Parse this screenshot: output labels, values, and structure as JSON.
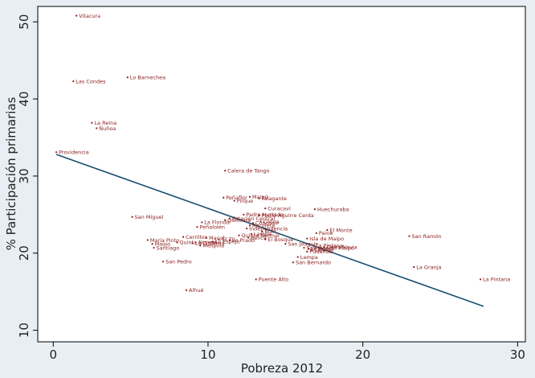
{
  "chart_data": {
    "type": "scatter",
    "xlabel": "Pobreza 2012",
    "ylabel": "% Participación primarias",
    "xlim": [
      -1,
      30.5
    ],
    "ylim": [
      8.5,
      52
    ],
    "xticks": [
      0,
      10,
      20,
      30
    ],
    "yticks": [
      10,
      20,
      30,
      40,
      50
    ],
    "grid": false,
    "legend": "none",
    "point_color": "#8b1a1a",
    "line_color": "#1a4f72",
    "fit_line": {
      "x": [
        0.2,
        27.8
      ],
      "y": [
        32.8,
        13.1
      ]
    },
    "points": [
      {
        "name": "Vitacura",
        "x": 1.5,
        "y": 50.8
      },
      {
        "name": "Las Condes",
        "x": 1.3,
        "y": 42.3
      },
      {
        "name": "Lo Barnechea",
        "x": 4.8,
        "y": 42.8
      },
      {
        "name": "La Reina",
        "x": 2.5,
        "y": 36.9
      },
      {
        "name": "Ñuñoa",
        "x": 2.8,
        "y": 36.2
      },
      {
        "name": "Providencia",
        "x": 0.2,
        "y": 33.1
      },
      {
        "name": "Calera de Tango",
        "x": 11.1,
        "y": 30.7
      },
      {
        "name": "Peñaflor",
        "x": 11.0,
        "y": 27.2
      },
      {
        "name": "Maipú",
        "x": 12.7,
        "y": 27.3
      },
      {
        "name": "Talagante",
        "x": 13.3,
        "y": 27.1
      },
      {
        "name": "Pirque",
        "x": 11.7,
        "y": 26.8
      },
      {
        "name": "Curacaví",
        "x": 13.7,
        "y": 25.8
      },
      {
        "name": "Huechuraba",
        "x": 16.9,
        "y": 25.7
      },
      {
        "name": "Padre Hurtado",
        "x": 12.3,
        "y": 25.0
      },
      {
        "name": "Pedro Aguirre Cerda",
        "x": 13.3,
        "y": 24.9
      },
      {
        "name": "San Miguel",
        "x": 5.1,
        "y": 24.7
      },
      {
        "name": "Estación Central",
        "x": 11.4,
        "y": 24.5
      },
      {
        "name": "Quilicura",
        "x": 11.1,
        "y": 24.3
      },
      {
        "name": "Colina",
        "x": 13.4,
        "y": 24.1
      },
      {
        "name": "La Florida",
        "x": 9.6,
        "y": 24.0
      },
      {
        "name": "Conchalí",
        "x": 12.9,
        "y": 23.9
      },
      {
        "name": "Recoleta",
        "x": 12.7,
        "y": 23.6
      },
      {
        "name": "Peñalolén",
        "x": 9.3,
        "y": 23.4
      },
      {
        "name": "Independencia",
        "x": 12.5,
        "y": 23.2
      },
      {
        "name": "El Monte",
        "x": 17.7,
        "y": 23.0
      },
      {
        "name": "Buin",
        "x": 13.5,
        "y": 22.8
      },
      {
        "name": "Paine",
        "x": 17.0,
        "y": 22.6
      },
      {
        "name": "Lampa",
        "x": 12.8,
        "y": 22.5
      },
      {
        "name": "Quinta Normal",
        "x": 12.0,
        "y": 22.3
      },
      {
        "name": "San Ramón",
        "x": 23.0,
        "y": 22.2
      },
      {
        "name": "Renca",
        "x": 12.6,
        "y": 22.0
      },
      {
        "name": "Cerrillos",
        "x": 8.4,
        "y": 22.1
      },
      {
        "name": "Macul",
        "x": 9.9,
        "y": 22.0
      },
      {
        "name": "Isla de Maipo",
        "x": 16.4,
        "y": 21.9
      },
      {
        "name": "Til Til",
        "x": 10.7,
        "y": 21.8
      },
      {
        "name": "María Pinto",
        "x": 6.1,
        "y": 21.7
      },
      {
        "name": "Lo Prado",
        "x": 11.4,
        "y": 21.7
      },
      {
        "name": "Lo Espejo",
        "x": 10.3,
        "y": 21.5
      },
      {
        "name": "El Bosque",
        "x": 13.7,
        "y": 21.8
      },
      {
        "name": "La Cisterna",
        "x": 9.0,
        "y": 21.3
      },
      {
        "name": "Quinta Normal",
        "x": 8.0,
        "y": 21.4
      },
      {
        "name": "San Joaquín",
        "x": 15.0,
        "y": 21.2
      },
      {
        "name": "La Pintana",
        "x": 16.8,
        "y": 21.0
      },
      {
        "name": "Cerro Navia",
        "x": 17.5,
        "y": 20.8
      },
      {
        "name": "Lo Prado",
        "x": 16.5,
        "y": 20.6
      },
      {
        "name": "Maipo",
        "x": 6.4,
        "y": 21.2
      },
      {
        "name": "Melipilla",
        "x": 9.5,
        "y": 21.0
      },
      {
        "name": "San José de Maipo",
        "x": 16.2,
        "y": 20.7
      },
      {
        "name": "Calera",
        "x": 16.7,
        "y": 20.4
      },
      {
        "name": "Santiago",
        "x": 6.5,
        "y": 20.7
      },
      {
        "name": "Pudahuel",
        "x": 16.4,
        "y": 20.2
      },
      {
        "name": "Lampa",
        "x": 15.8,
        "y": 19.5
      },
      {
        "name": "San Bernardo",
        "x": 15.5,
        "y": 18.8
      },
      {
        "name": "San Pedro",
        "x": 7.1,
        "y": 18.9
      },
      {
        "name": "La Granja",
        "x": 23.3,
        "y": 18.2
      },
      {
        "name": "Puente Alto",
        "x": 13.1,
        "y": 16.6
      },
      {
        "name": "Alhué",
        "x": 8.6,
        "y": 15.2
      },
      {
        "name": "La Pintana",
        "x": 27.6,
        "y": 16.6
      }
    ]
  }
}
